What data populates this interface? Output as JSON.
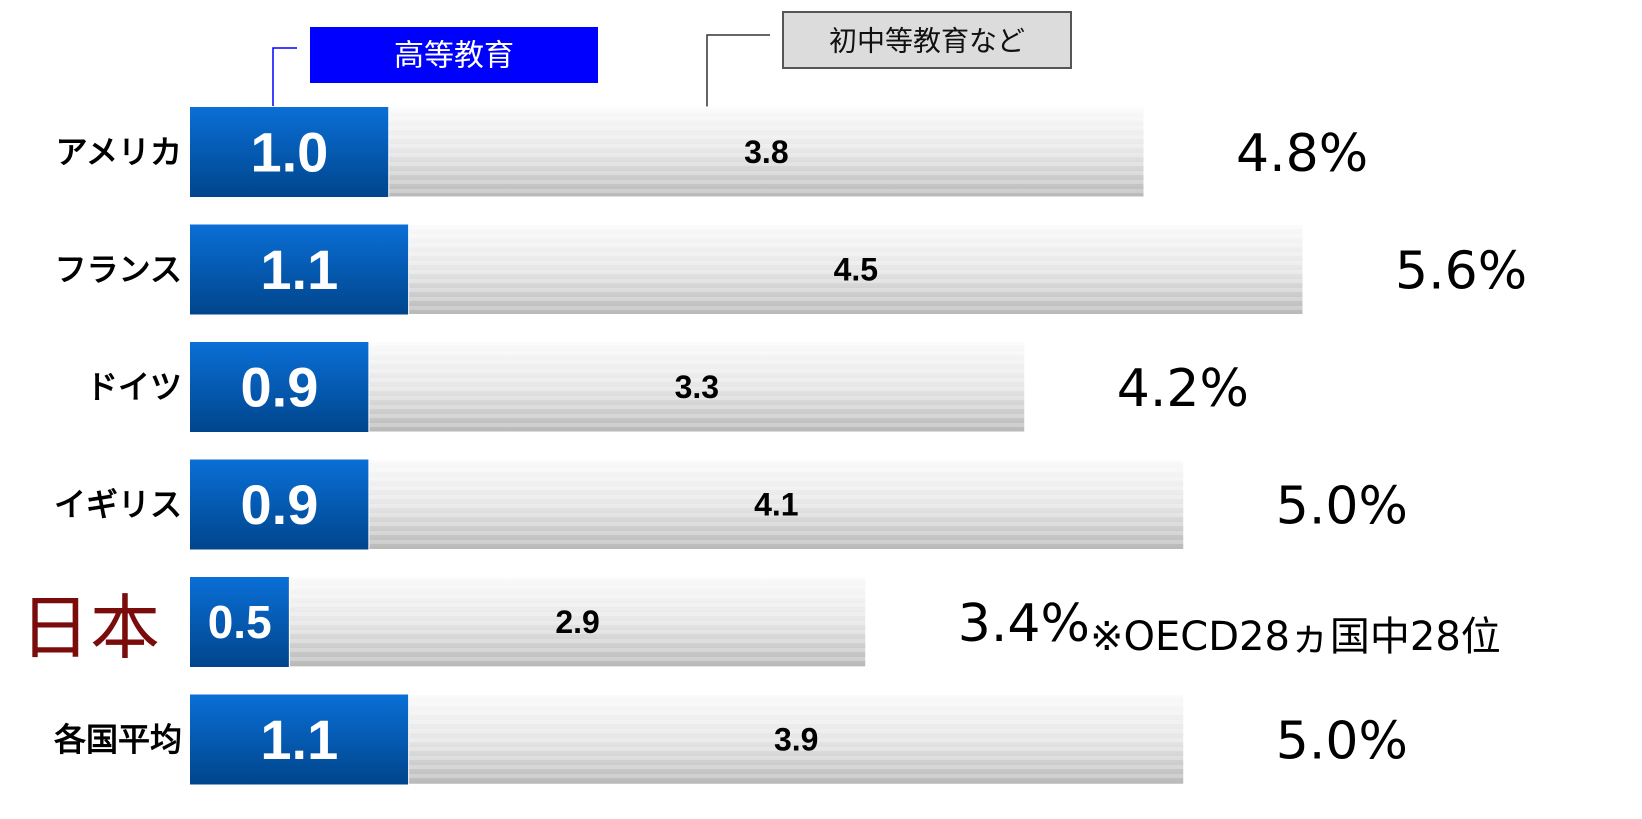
{
  "chart_data": {
    "type": "stacked-bar-horizontal",
    "categories": [
      "アメリカ",
      "フランス",
      "ドイツ",
      "イギリス",
      "日本",
      "各国平均"
    ],
    "category_colors": [
      "#000000",
      "#000000",
      "#000000",
      "#000000",
      "#7a0c0c",
      "#000000"
    ],
    "series": [
      {
        "name": "高等教育",
        "color": "#0060c0",
        "values": [
          1.0,
          1.1,
          0.9,
          0.9,
          0.5,
          1.1
        ],
        "value_labels": [
          "1.0",
          "1.1",
          "0.9",
          "0.9",
          "0.5",
          "1.1"
        ]
      },
      {
        "name": "初中等教育など",
        "color": "#d9d9d9",
        "values": [
          3.8,
          4.5,
          3.3,
          4.1,
          2.9,
          3.9
        ]
      }
    ],
    "totals": [
      4.8,
      5.6,
      4.2,
      5.0,
      3.4,
      5.0
    ],
    "total_labels": [
      "4.8%",
      "5.6%",
      "4.2%",
      "5.0%",
      "3.4%",
      "5.0%"
    ],
    "annotation": "※OECD28ヵ国中28位"
  }
}
